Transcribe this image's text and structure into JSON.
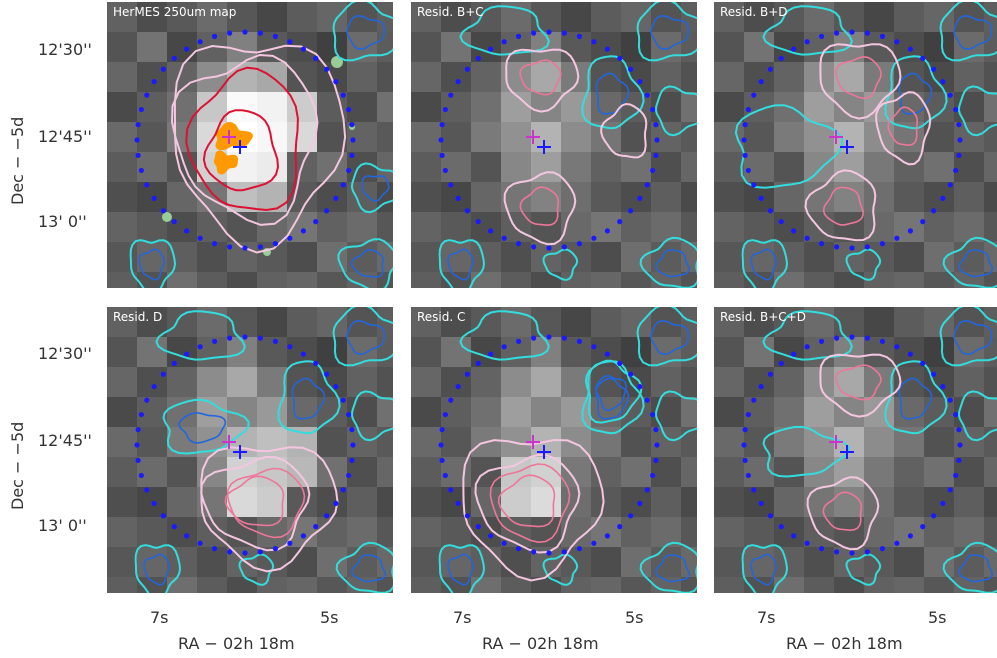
{
  "figure": {
    "y_axis": {
      "label": "Dec − −5d",
      "ticks": [
        "12'30''",
        "12'45''",
        "13' 0''"
      ]
    },
    "x_axis": {
      "label": "RA − 02h 18m",
      "ticks": [
        "7s",
        "5s"
      ]
    },
    "panels": [
      {
        "label": "HerMES 250um map"
      },
      {
        "label": "Resid. B+C"
      },
      {
        "label": "Resid. B+D"
      },
      {
        "label": "Resid. D"
      },
      {
        "label": "Resid. C"
      },
      {
        "label": "Resid. B+C+D"
      }
    ]
  },
  "colors": {
    "aperture_circle": "#1a1aff",
    "marker_blue": "#1a1aff",
    "marker_magenta": "#cc33cc",
    "contour_negative": "#33dddd",
    "contour_negative_inner": "#2266dd",
    "contour_positive": "#f5c6e0",
    "contour_positive_inner": "#ee7799",
    "contour_strong": "#dd1133",
    "source_orange": "#ff9900",
    "source_green": "#99cc99"
  }
}
